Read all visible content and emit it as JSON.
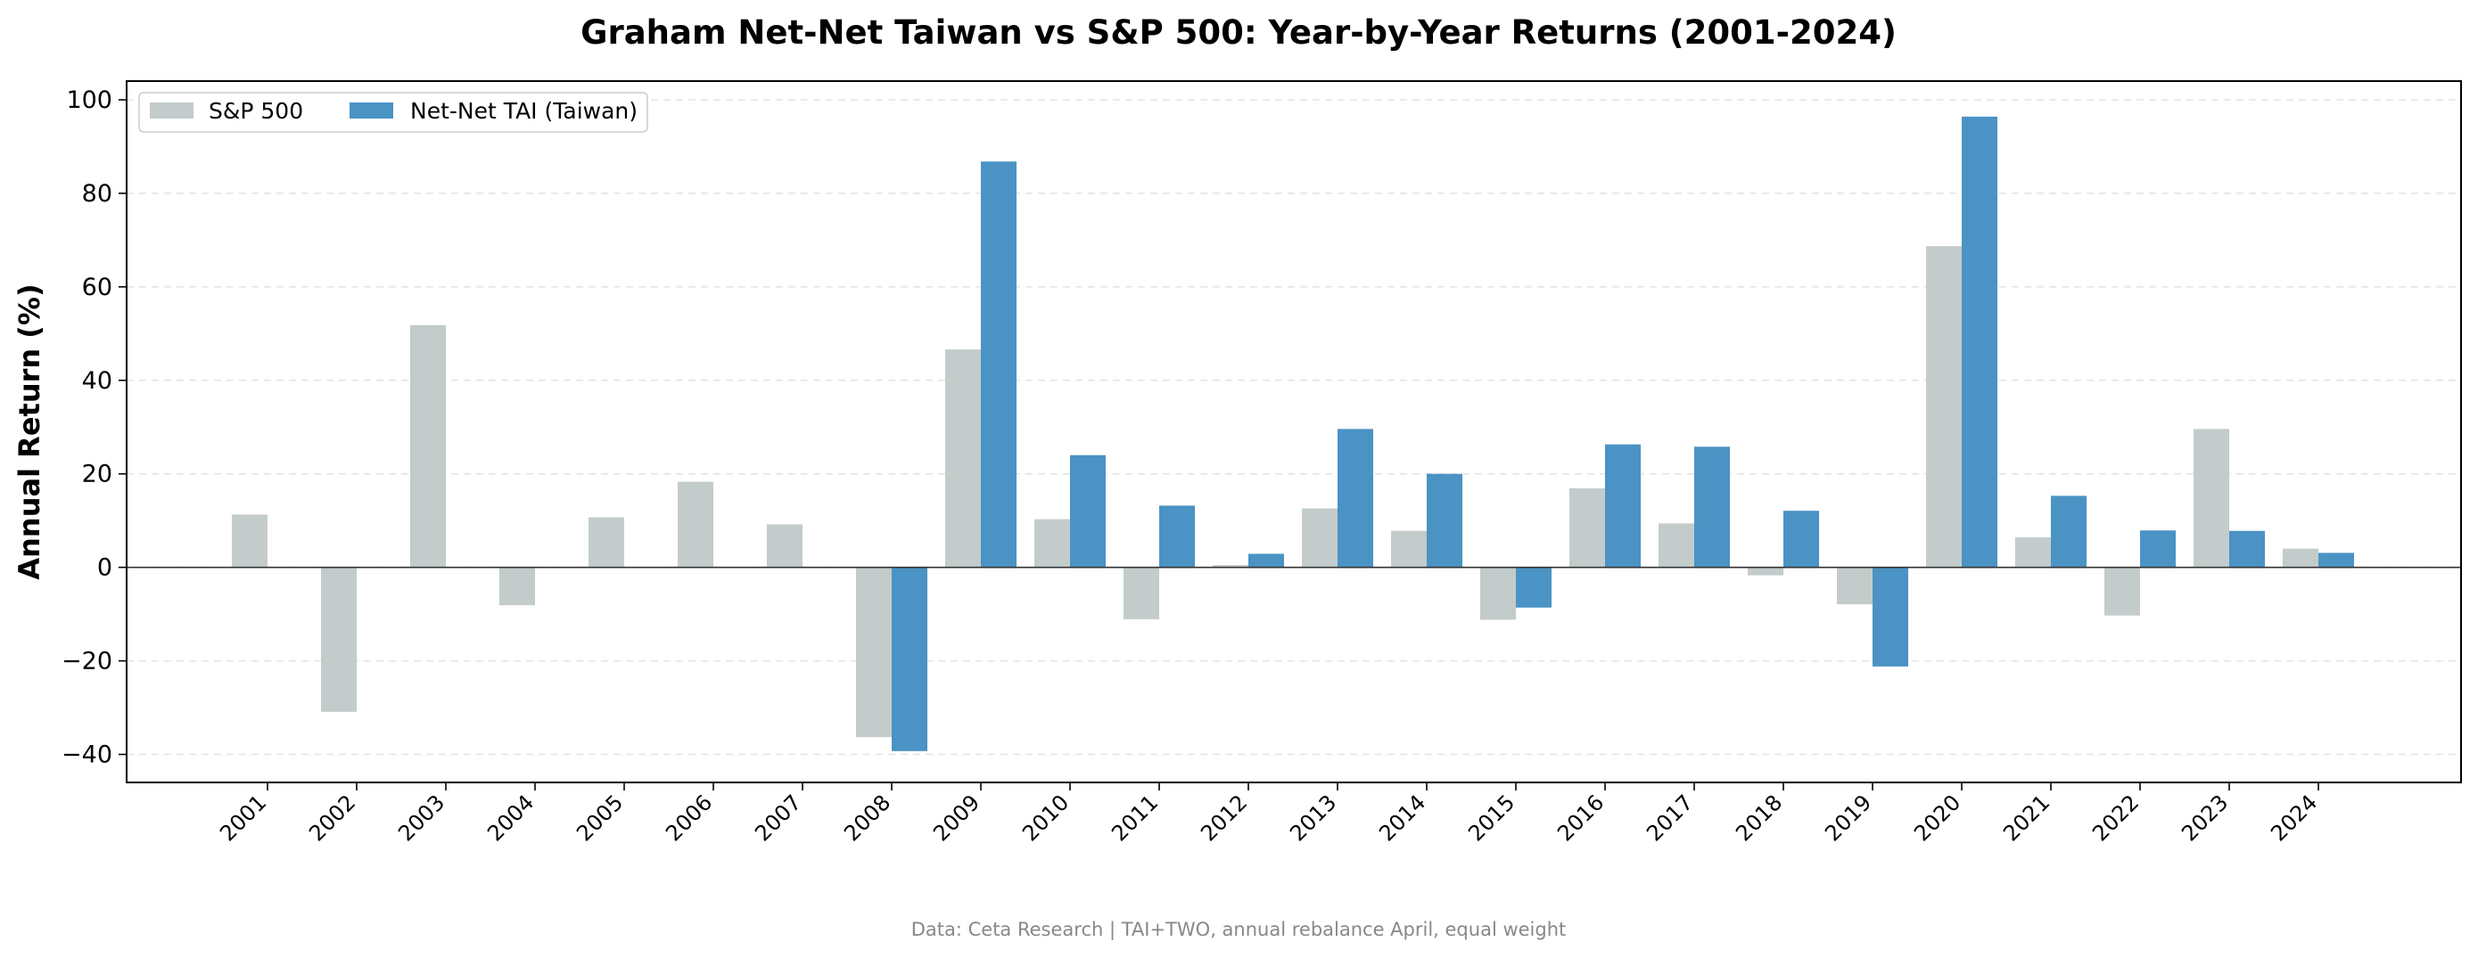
{
  "chart_data": {
    "type": "bar",
    "title": "Graham Net-Net Taiwan vs S&P 500: Year-by-Year Returns (2001-2024)",
    "xlabel": "",
    "ylabel": "Annual Return (%)",
    "ylim": [
      -46,
      104
    ],
    "yticks": [
      -40,
      -20,
      0,
      20,
      40,
      60,
      80,
      100
    ],
    "ytick_labels": [
      "−40",
      "−20",
      "0",
      "20",
      "40",
      "60",
      "80",
      "100"
    ],
    "grid": true,
    "legend_position": "top-left",
    "categories": [
      "2001",
      "2002",
      "2003",
      "2004",
      "2005",
      "2006",
      "2007",
      "2008",
      "2009",
      "2010",
      "2011",
      "2012",
      "2013",
      "2014",
      "2015",
      "2016",
      "2017",
      "2018",
      "2019",
      "2020",
      "2021",
      "2022",
      "2023",
      "2024"
    ],
    "series": [
      {
        "name": "S&P 500",
        "color": "#c3cbcb",
        "values": [
          11.3,
          -30.9,
          51.8,
          -8.1,
          10.7,
          18.3,
          9.2,
          -36.3,
          46.6,
          10.3,
          -11.1,
          0.5,
          12.6,
          7.8,
          -11.2,
          16.9,
          9.4,
          -1.7,
          -7.9,
          68.7,
          6.4,
          -10.3,
          29.6,
          4.0
        ]
      },
      {
        "name": "Net-Net TAI (Taiwan)",
        "color": "#4a93c4",
        "values": [
          null,
          null,
          null,
          null,
          null,
          null,
          null,
          -39.3,
          86.8,
          24.0,
          13.2,
          2.9,
          29.6,
          20.0,
          -8.6,
          26.3,
          25.8,
          12.1,
          -21.2,
          96.4,
          15.3,
          7.9,
          7.8,
          3.1
        ]
      }
    ],
    "footer": "Data: Ceta Research | TAI+TWO, annual rebalance April, equal weight"
  }
}
